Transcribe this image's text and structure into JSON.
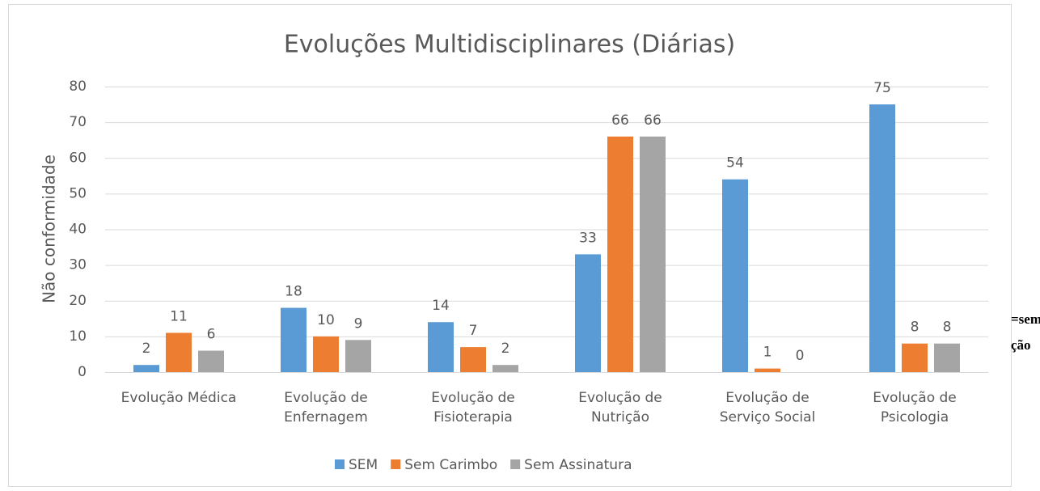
{
  "chart_data": {
    "type": "bar",
    "title": "Evoluções Multidisciplinares (Diárias)",
    "y_label": "Não conformidade",
    "categories": [
      "Evolução Médica",
      "Evolução de Enfernagem",
      "Evolução de Fisioterapia",
      "Evolução de Nutrição",
      "Evolução de Serviço Social",
      "Evolução de Psicologia"
    ],
    "series": [
      {
        "name": "SEM",
        "color": "#5b9bd5",
        "values": [
          2,
          18,
          14,
          33,
          54,
          75
        ]
      },
      {
        "name": "Sem Carimbo",
        "color": "#ed7d31",
        "values": [
          11,
          10,
          7,
          66,
          1,
          8
        ]
      },
      {
        "name": "Sem Assinatura",
        "color": "#a5a5a5",
        "values": [
          6,
          9,
          2,
          66,
          0,
          8
        ]
      }
    ],
    "ylim": [
      0,
      80
    ],
    "yticks": [
      0,
      10,
      20,
      30,
      40,
      50,
      60,
      70,
      80
    ],
    "grid": true,
    "legend": "bottom",
    "annotations": [
      "=sem",
      "ção"
    ]
  }
}
